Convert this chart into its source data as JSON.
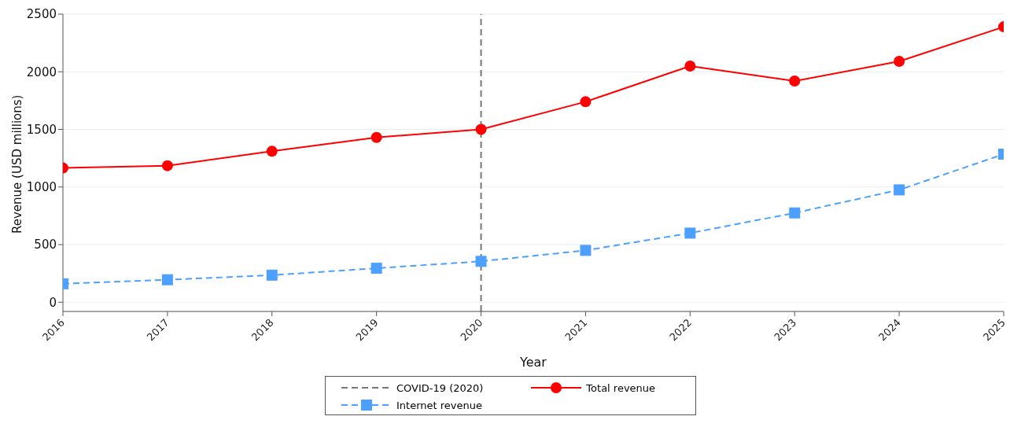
{
  "chart_data": {
    "type": "line",
    "xlabel": "Year",
    "ylabel": "Revenue (USD millions)",
    "x": [
      2016,
      2017,
      2018,
      2019,
      2020,
      2021,
      2022,
      2023,
      2024,
      2025
    ],
    "series": [
      {
        "name": "Total revenue",
        "color": "#ff0000",
        "marker": "circle",
        "line_style": "solid",
        "values": [
          1165,
          1185,
          1310,
          1430,
          1500,
          1740,
          2050,
          1920,
          2090,
          2390
        ]
      },
      {
        "name": "Internet revenue",
        "color": "#4da0ff",
        "marker": "square",
        "line_style": "dashed",
        "values": [
          160,
          195,
          235,
          295,
          355,
          450,
          600,
          775,
          975,
          1285
        ]
      }
    ],
    "xlim": [
      2016,
      2025
    ],
    "xticks": [
      2016,
      2017,
      2018,
      2019,
      2020,
      2021,
      2022,
      2023,
      2024,
      2025
    ],
    "ylim": [
      -80,
      2500
    ],
    "yticks": [
      0,
      500,
      1000,
      1500,
      2000,
      2500
    ],
    "ref_lines": [
      {
        "axis": "x",
        "value": 2020,
        "label": "COVID-19 (2020)",
        "color": "#777777",
        "line_style": "dashed"
      }
    ],
    "grid": "y",
    "legend": "bottom"
  }
}
